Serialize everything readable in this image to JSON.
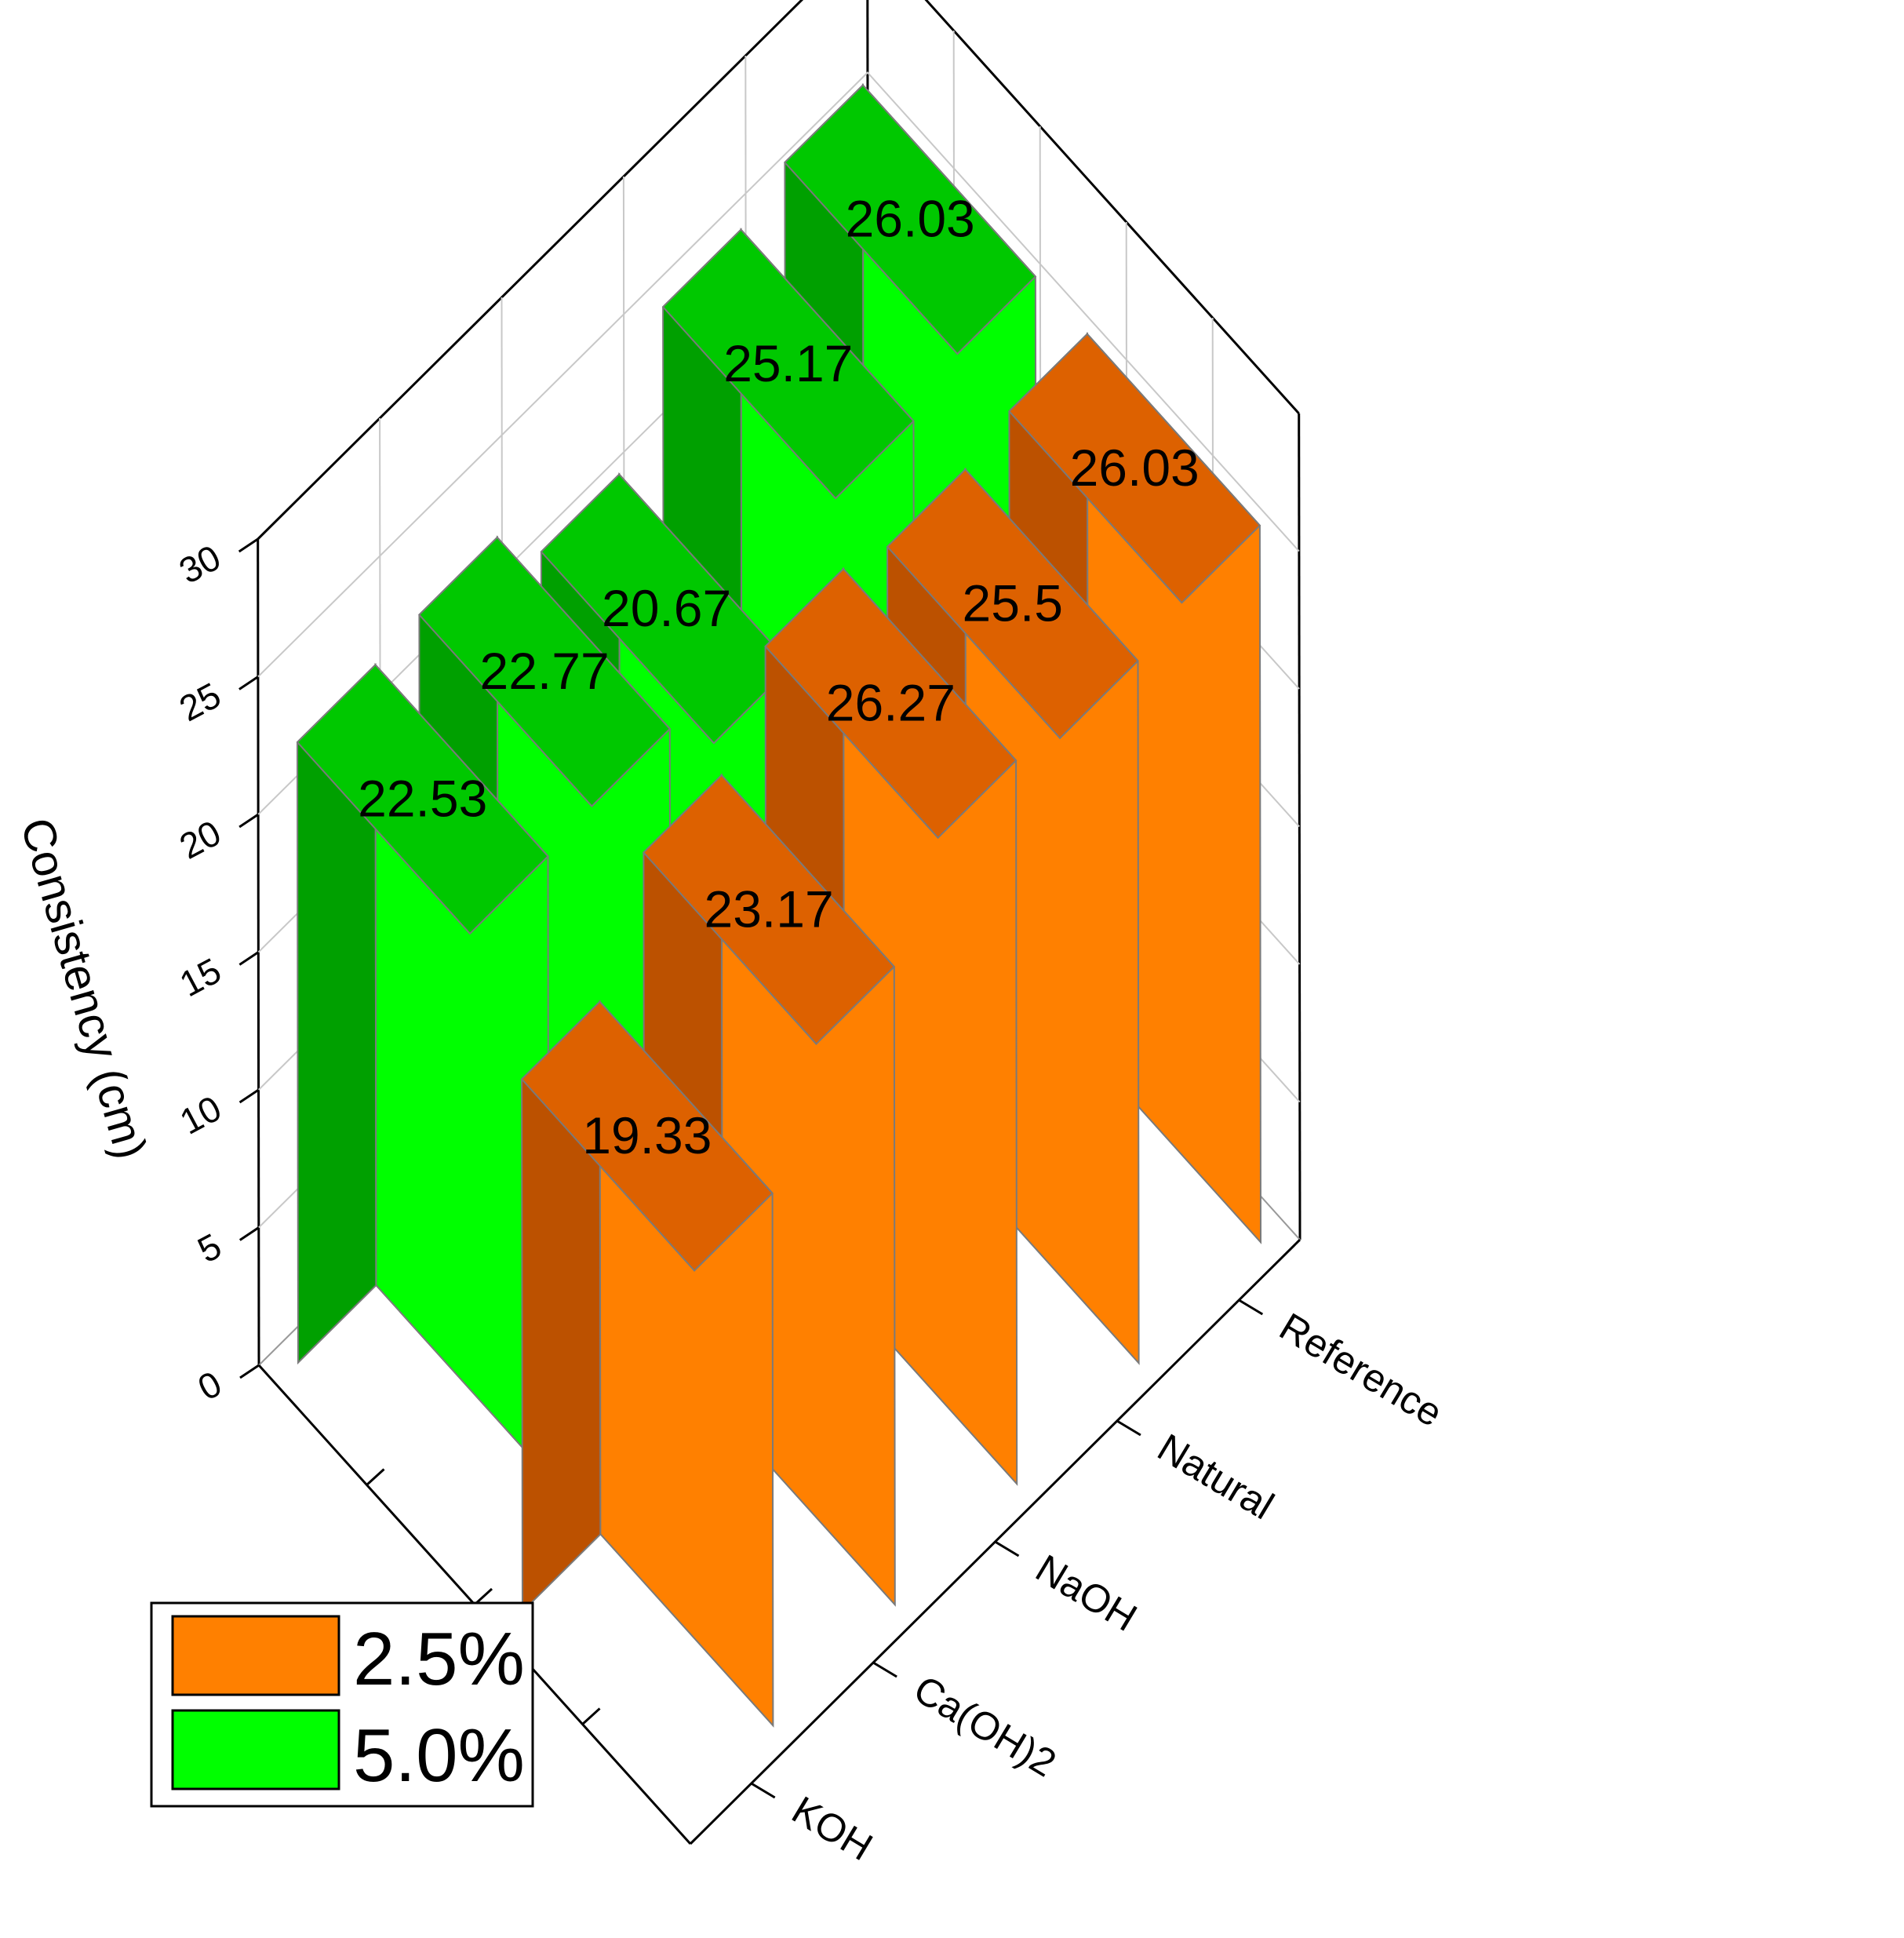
{
  "chart_data": {
    "type": "bar",
    "variant": "3d-grouped",
    "categories": [
      "KOH",
      "Ca(OH)2",
      "NaOH",
      "Natural",
      "Reference"
    ],
    "series": [
      {
        "name": "2.5%",
        "values": [
          19.33,
          23.17,
          26.27,
          25.5,
          26.03
        ]
      },
      {
        "name": "5.0%",
        "values": [
          22.53,
          22.77,
          20.67,
          25.17,
          26.03
        ]
      }
    ],
    "data_labels": {
      "2.5%": [
        "19.33",
        "23.17",
        "26.27",
        "25.5",
        "26.03"
      ],
      "5.0%": [
        "22.53",
        "22.77",
        "20.67",
        "25.17",
        "26.03"
      ]
    },
    "ylabel": "Consistency (cm)",
    "ylim": [
      0,
      30
    ],
    "yticks": [
      "0",
      "5",
      "10",
      "15",
      "20",
      "25",
      "30"
    ],
    "grid": true,
    "legend": {
      "position": "bottom-left",
      "entries": [
        {
          "label": "2.5%",
          "color": "#FF8000"
        },
        {
          "label": "5.0%",
          "color": "#00FF00"
        }
      ]
    },
    "colors": {
      "2.5%": {
        "top": "#DD6100",
        "front": "#BC5100",
        "side": "#FF8000"
      },
      "5.0%": {
        "top": "#00C800",
        "front": "#00A000",
        "side": "#00FF00"
      },
      "edge": "#7A7A7A"
    }
  }
}
